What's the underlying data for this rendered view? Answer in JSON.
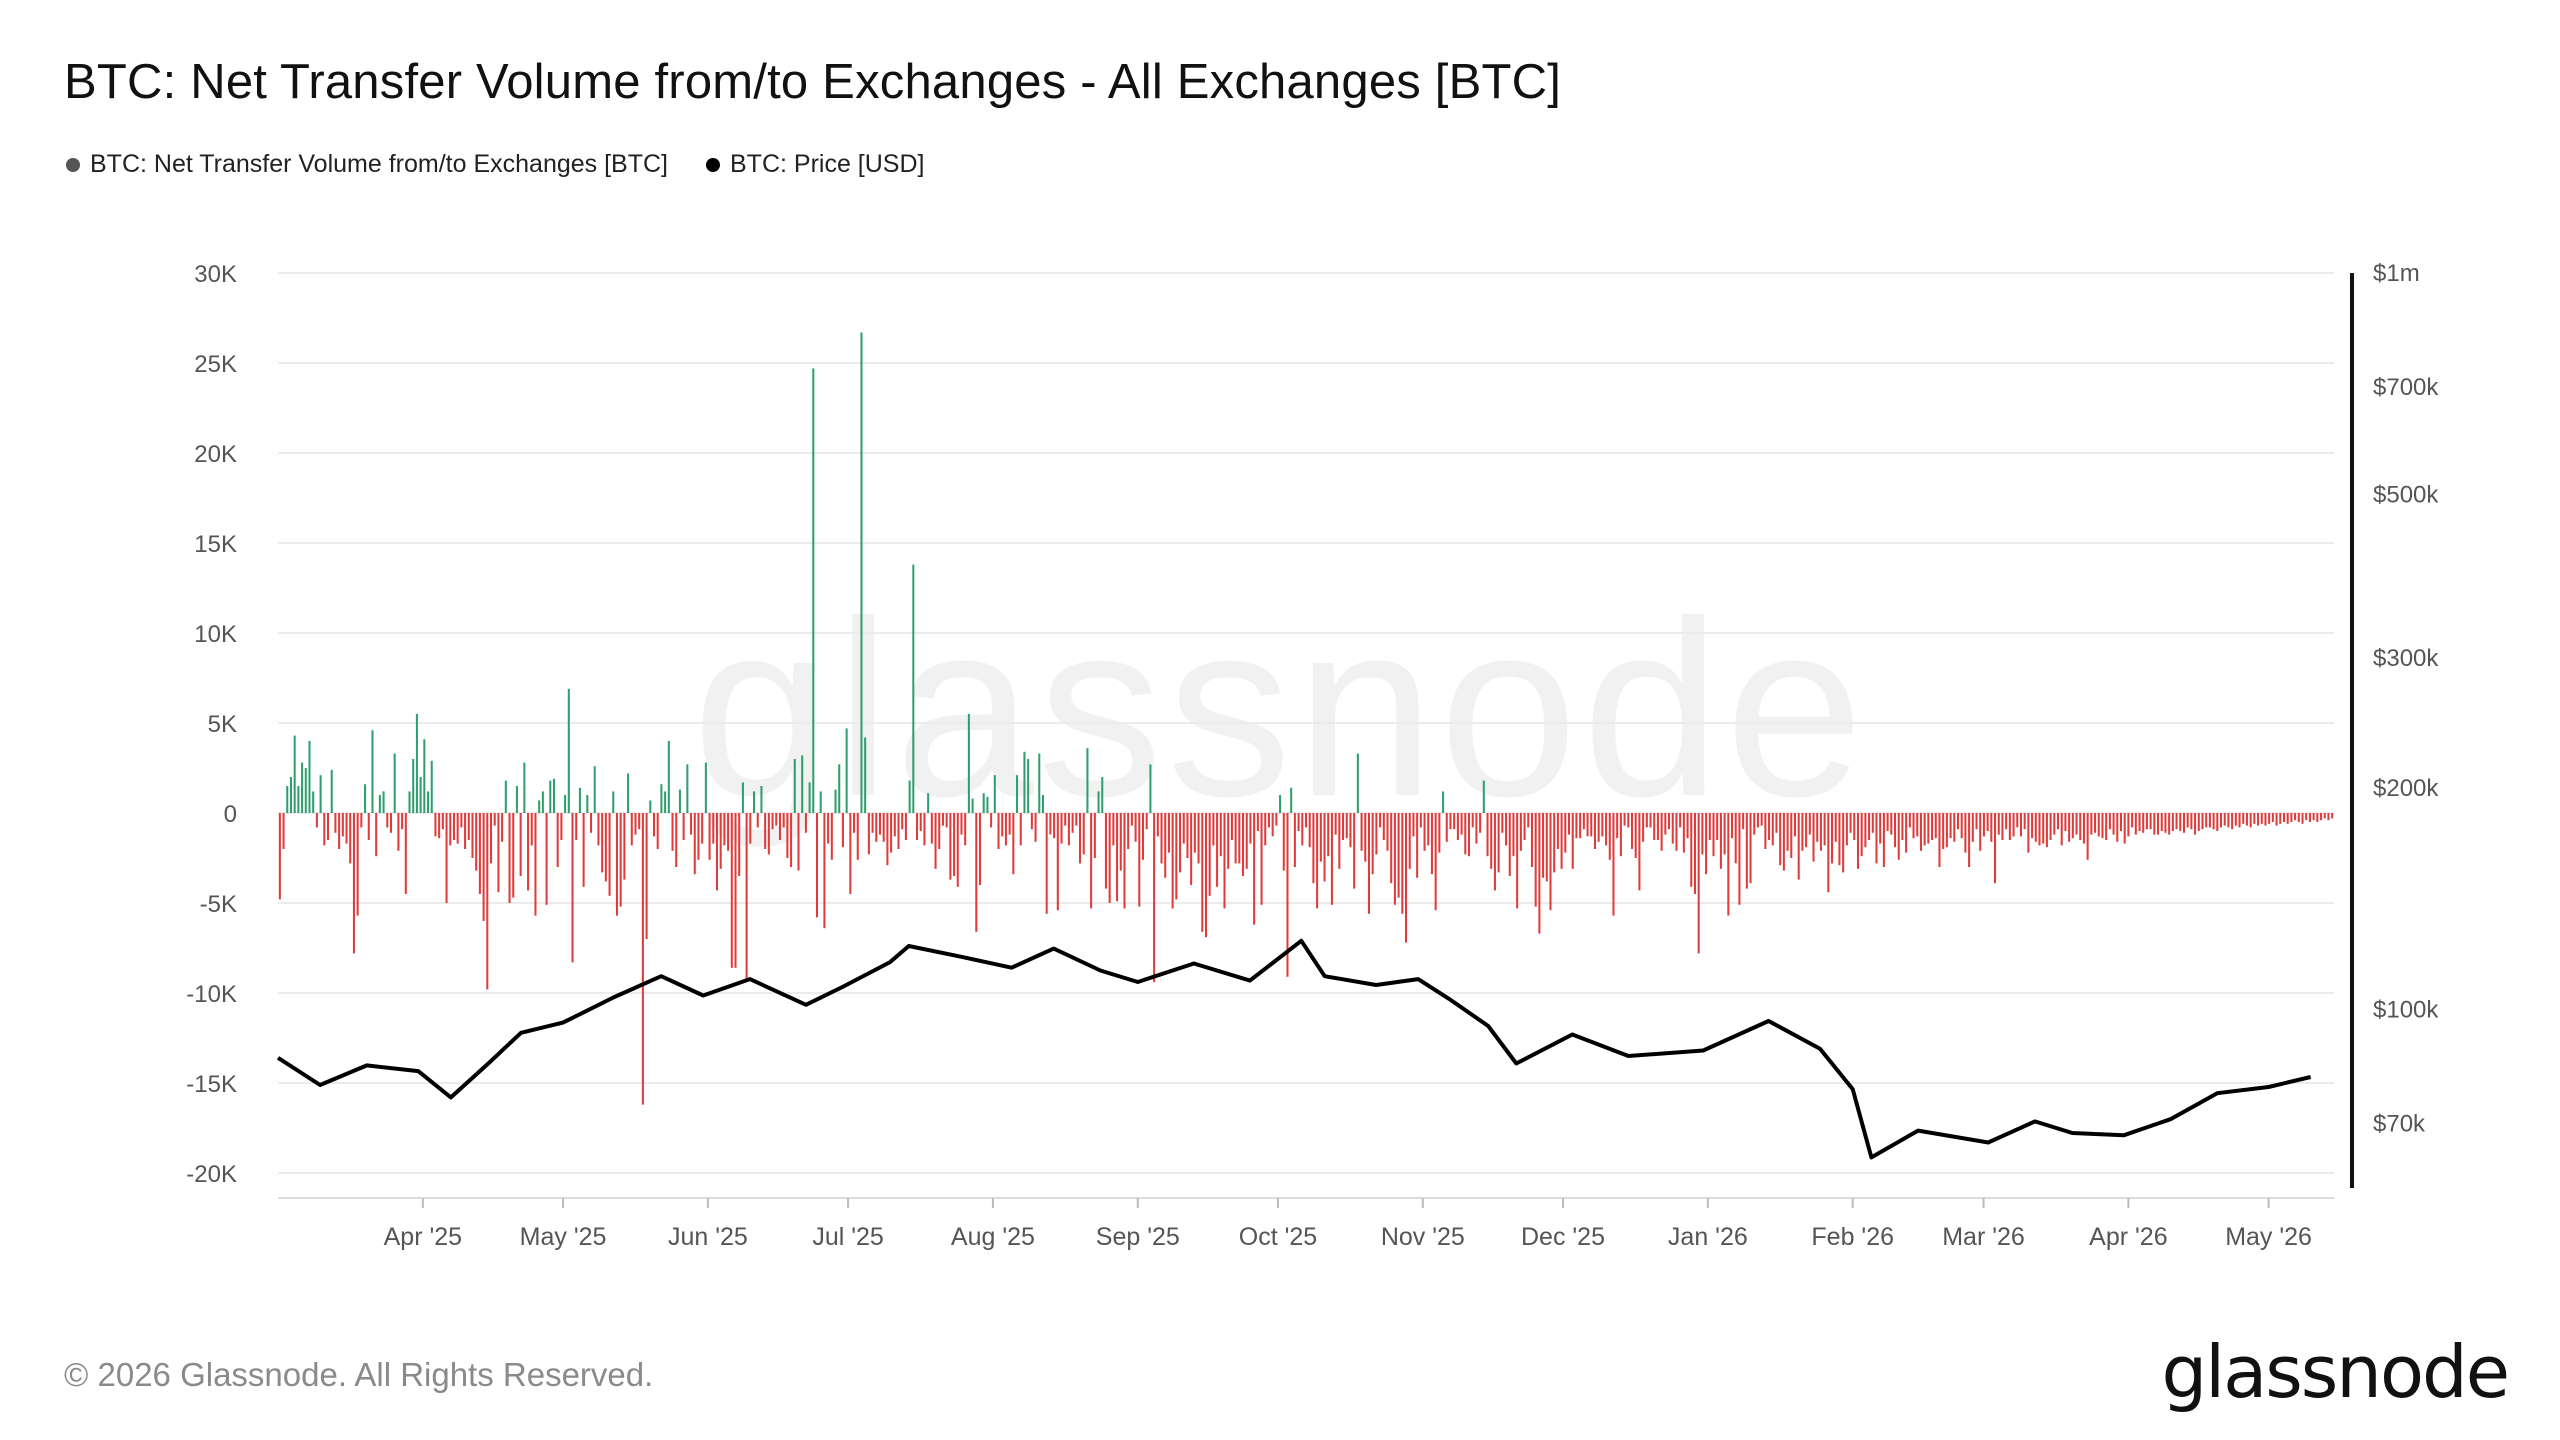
{
  "title": "BTC: Net Transfer Volume from/to Exchanges - All Exchanges [BTC]",
  "legend": [
    {
      "label": "BTC: Net Transfer Volume from/to Exchanges [BTC]",
      "color": "#555555"
    },
    {
      "label": "BTC: Price [USD]",
      "color": "#000000"
    }
  ],
  "watermark": "glassnode",
  "footer": {
    "copyright": "© 2026 Glassnode. All Rights Reserved.",
    "brand": "glassnode"
  },
  "chart_data": {
    "type": "bar",
    "title": "BTC: Net Transfer Volume from/to Exchanges - All Exchanges [BTC]",
    "x_ticks": [
      "Apr '25",
      "May '25",
      "Jun '25",
      "Jul '25",
      "Aug '25",
      "Sep '25",
      "Oct '25",
      "Nov '25",
      "Dec '25",
      "Jan '26",
      "Feb '26",
      "Mar '26",
      "Apr '26",
      "May '26"
    ],
    "y_left": {
      "ticks": [
        "30K",
        "25K",
        "20K",
        "15K",
        "10K",
        "5K",
        "0",
        "-5K",
        "-10K",
        "-15K",
        "-20K"
      ],
      "range": [
        -20000,
        30000
      ]
    },
    "y_right": {
      "ticks": [
        "$1m",
        "$700k",
        "$500k",
        "$300k",
        "$200k",
        "$100k",
        "$70k"
      ],
      "scale": "log",
      "range": [
        60000,
        1000000
      ]
    },
    "colors": {
      "positive": "#2f9e6e",
      "negative": "#e03b3b",
      "price": "#000000",
      "grid": "#ebebeb"
    },
    "grid": true,
    "legend_position": "top-left",
    "net_volume_series": {
      "name": "BTC: Net Transfer Volume from/to Exchanges [BTC]",
      "start_date": "2025-03-01",
      "interval": "1 day",
      "values": [
        -4800,
        -2000,
        1500,
        2000,
        4300,
        1500,
        2800,
        2500,
        4000,
        1200,
        -800,
        2100,
        -1800,
        -1500,
        2400,
        -1100,
        -2000,
        -1300,
        -1700,
        -2800,
        -7800,
        -5700,
        -800,
        1600,
        -1500,
        4600,
        -2400,
        1000,
        1200,
        -800,
        -1100,
        3300,
        -2100,
        -900,
        -4500,
        1200,
        3000,
        5500,
        2000,
        4100,
        1200,
        2900,
        -1300,
        -1400,
        -900,
        -5000,
        -1800,
        -1500,
        -1700,
        -800,
        -2000,
        -1500,
        -2500,
        -3200,
        -4500,
        -6000,
        -9800,
        -2800,
        -700,
        -4400,
        -1600,
        1800,
        -5000,
        -4700,
        1500,
        -3500,
        2800,
        -4300,
        -1800,
        -5700,
        700,
        1200,
        -5100,
        1800,
        1900,
        -3000,
        -1500,
        1000,
        6900,
        -8300,
        -1500,
        1400,
        -4100,
        1000,
        -1100,
        2600,
        -1800,
        -3300,
        -3800,
        -4600,
        1200,
        -5700,
        -5200,
        -3700,
        2200,
        -1800,
        -1200,
        -900,
        -16200,
        -7000,
        700,
        -1300,
        -2000,
        1600,
        1200,
        4000,
        -2100,
        -3000,
        1300,
        -1500,
        2700,
        -1200,
        -3400,
        -2600,
        -1700,
        2800,
        -2600,
        -1700,
        -4300,
        -3100,
        -1800,
        -2100,
        -8600,
        -8600,
        -3500,
        1700,
        -9200,
        -1700,
        1200,
        -800,
        1500,
        -2000,
        -2300,
        -900,
        -700,
        -1500,
        -800,
        -2500,
        -3000,
        3000,
        -3200,
        3200,
        -1100,
        1700,
        24700,
        -5800,
        1200,
        -6400,
        -1700,
        -2600,
        1300,
        2700,
        -1900,
        4700,
        -4500,
        -1100,
        -2600,
        26700,
        4200,
        -2300,
        -1100,
        -1600,
        -1200,
        -1600,
        -2900,
        -2200,
        -1300,
        -2000,
        -900,
        -1500,
        1800,
        13800,
        -1500,
        -1000,
        -1800,
        1100,
        -1700,
        -3100,
        -2000,
        -700,
        -800,
        -3700,
        -3500,
        -4100,
        -1200,
        -1800,
        5500,
        800,
        -6600,
        -4000,
        1100,
        900,
        -800,
        2100,
        -2000,
        -1300,
        -1800,
        -1200,
        -3400,
        2100,
        -1800,
        3400,
        3000,
        -900,
        -1600,
        3300,
        1000,
        -5600,
        -1200,
        -1400,
        -5400,
        -1700,
        -700,
        -1800,
        -1100,
        -700,
        -2800,
        -2300,
        3600,
        -5300,
        -2500,
        1200,
        2000,
        -4200,
        -5000,
        -1800,
        -4900,
        -3200,
        -5300,
        -2000,
        -700,
        -1600,
        -5200,
        -2600,
        -900,
        2700,
        -9400,
        -1300,
        -2800,
        -3600,
        -2200,
        -5300,
        -4800,
        -3300,
        -1700,
        -2500,
        -4000,
        -2200,
        -2800,
        -6600,
        -6900,
        -4600,
        -1800,
        -4100,
        -2400,
        -5300,
        -3100,
        -1500,
        -2800,
        -2800,
        -3500,
        -3100,
        -1700,
        -6200,
        -1000,
        -5100,
        -1800,
        -800,
        -1300,
        -700,
        1000,
        -3200,
        -9100,
        1400,
        -3000,
        -1000,
        -1800,
        -800,
        -1900,
        -3900,
        -5300,
        -2700,
        -3800,
        -2400,
        -5100,
        -1200,
        -3100,
        -1500,
        -1400,
        -1900,
        -4200,
        3300,
        -2100,
        -2700,
        -5600,
        -3400,
        -2300,
        -800,
        -1500,
        -2100,
        -3900,
        -5100,
        -4700,
        -5600,
        -7200,
        -3100,
        -1300,
        -3600,
        -800,
        -2100,
        -1800,
        -3400,
        -5400,
        -2200,
        1200,
        -1600,
        -900,
        -900,
        -1500,
        -1200,
        -2300,
        -2400,
        -800,
        -1700,
        -1100,
        1800,
        -2400,
        -3100,
        -4300,
        -3300,
        -1100,
        -1800,
        -3500,
        -2400,
        -5300,
        -2100,
        -1500,
        -800,
        -3000,
        -5200,
        -6700,
        -3600,
        -3800,
        -5400,
        -3300,
        -2000,
        -3100,
        -2200,
        -1200,
        -3100,
        -1400,
        -1400,
        -900,
        -1300,
        -1300,
        -2000,
        -1600,
        -1300,
        -1800,
        -2600,
        -5700,
        -1400,
        -2400,
        -700,
        -800,
        -2000,
        -2500,
        -4300,
        -1600,
        -800,
        -800,
        -1500,
        -1500,
        -2100,
        -1200,
        -900,
        -1700,
        -2100,
        -800,
        -2200,
        -1400,
        -4100,
        -4500,
        -7800,
        -2300,
        -3400,
        -1500,
        -2400,
        -1500,
        -3100,
        -2300,
        -5700,
        -1400,
        -2800,
        -5100,
        -900,
        -4200,
        -3900,
        -1200,
        -800,
        -700,
        -2000,
        -1500,
        -1800,
        -1100,
        -2900,
        -3200,
        -2100,
        -2500,
        -1300,
        -3700,
        -2100,
        -1900,
        -1200,
        -2700,
        -1600,
        -2100,
        -1800,
        -4400,
        -2800,
        -1600,
        -2900,
        -3300,
        -1800,
        -1100,
        -1500,
        -3100,
        -2400,
        -1900,
        -1500,
        -1100,
        -2800,
        -1700,
        -3000,
        -1000,
        -1200,
        -1900,
        -2600,
        -1500,
        -2200,
        -800,
        -1400,
        -1300,
        -2100,
        -1800,
        -1700,
        -1500,
        -1400,
        -3000,
        -2000,
        -1900,
        -1400,
        -1600,
        -900,
        -1400,
        -2200,
        -3000,
        -1600,
        -900,
        -2100,
        -1300,
        -1000,
        -1600,
        -3900,
        -1200,
        -1500,
        -900,
        -1500,
        -1300,
        -800,
        -1300,
        -900,
        -2200,
        -1400,
        -1600,
        -1800,
        -1700,
        -1900,
        -1500,
        -1200,
        -900,
        -1800,
        -1000,
        -1600,
        -1400,
        -1200,
        -1500,
        -1700,
        -2600,
        -1200,
        -1100,
        -1300,
        -1400,
        -1500,
        -900,
        -1200,
        -1600,
        -1000,
        -1700,
        -1300,
        -800,
        -1200,
        -1000,
        -1100,
        -900,
        -900,
        -1200,
        -1200,
        -1000,
        -1100,
        -1200,
        -1000,
        -900,
        -1000,
        -1100,
        -800,
        -900,
        -1200,
        -1000,
        -900,
        -800,
        -800,
        -900,
        -1000,
        -800,
        -700,
        -800,
        -900,
        -700,
        -800,
        -600,
        -700,
        -800,
        -600,
        -700,
        -600,
        -700,
        -600,
        -500,
        -700,
        -600,
        -500,
        -600,
        -500,
        -400,
        -500,
        -600,
        -400,
        -500,
        -400,
        -500,
        -400,
        -300,
        -400,
        -300
      ]
    },
    "price_series": {
      "name": "BTC: Price [USD]",
      "points": [
        [
          "2025-03-01",
          86000
        ],
        [
          "2025-03-10",
          79000
        ],
        [
          "2025-03-20",
          84000
        ],
        [
          "2025-03-31",
          82500
        ],
        [
          "2025-04-07",
          76000
        ],
        [
          "2025-04-15",
          84500
        ],
        [
          "2025-04-22",
          93000
        ],
        [
          "2025-05-01",
          96000
        ],
        [
          "2025-05-12",
          104000
        ],
        [
          "2025-05-22",
          111000
        ],
        [
          "2025-05-31",
          104500
        ],
        [
          "2025-06-10",
          110000
        ],
        [
          "2025-06-22",
          101500
        ],
        [
          "2025-06-30",
          107500
        ],
        [
          "2025-07-10",
          116000
        ],
        [
          "2025-07-14",
          122000
        ],
        [
          "2025-07-25",
          118000
        ],
        [
          "2025-08-05",
          114000
        ],
        [
          "2025-08-14",
          121000
        ],
        [
          "2025-08-24",
          113000
        ],
        [
          "2025-09-01",
          109000
        ],
        [
          "2025-09-13",
          115500
        ],
        [
          "2025-09-25",
          109500
        ],
        [
          "2025-10-06",
          124000
        ],
        [
          "2025-10-11",
          111000
        ],
        [
          "2025-10-22",
          108000
        ],
        [
          "2025-10-31",
          110000
        ],
        [
          "2025-11-07",
          103000
        ],
        [
          "2025-11-15",
          95000
        ],
        [
          "2025-11-21",
          84500
        ],
        [
          "2025-12-03",
          92500
        ],
        [
          "2025-12-15",
          86500
        ],
        [
          "2025-12-31",
          88000
        ],
        [
          "2026-01-14",
          96500
        ],
        [
          "2026-01-25",
          88500
        ],
        [
          "2026-02-01",
          78000
        ],
        [
          "2026-02-05",
          63000
        ],
        [
          "2026-02-15",
          68500
        ],
        [
          "2026-03-02",
          66000
        ],
        [
          "2026-03-12",
          70500
        ],
        [
          "2026-03-20",
          68000
        ],
        [
          "2026-03-31",
          67500
        ],
        [
          "2026-04-10",
          71000
        ],
        [
          "2026-04-20",
          77000
        ],
        [
          "2026-05-01",
          78500
        ],
        [
          "2026-05-10",
          81000
        ]
      ]
    }
  }
}
